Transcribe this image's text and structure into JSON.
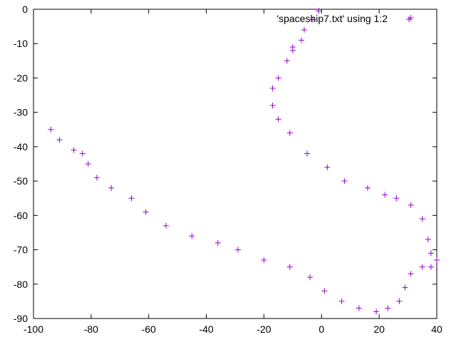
{
  "chart_data": {
    "type": "scatter",
    "title": "",
    "xlabel": "",
    "ylabel": "",
    "xlim": [
      -100,
      40
    ],
    "ylim": [
      -90,
      0
    ],
    "xticks": [
      -100,
      -80,
      -60,
      -40,
      -20,
      0,
      20,
      40
    ],
    "yticks": [
      0,
      -10,
      -20,
      -30,
      -40,
      -50,
      -60,
      -70,
      -80,
      -90
    ],
    "grid": false,
    "legend": "top-right",
    "marker_color": "#9400d3",
    "series": [
      {
        "name": "'spaceship7.txt' using 1:2",
        "points": [
          [
            -94,
            -35
          ],
          [
            -91,
            -38
          ],
          [
            -86,
            -41
          ],
          [
            -83,
            -42
          ],
          [
            -81,
            -45
          ],
          [
            -78,
            -49
          ],
          [
            -73,
            -52
          ],
          [
            -66,
            -55
          ],
          [
            -61,
            -59
          ],
          [
            -54,
            -63
          ],
          [
            -45,
            -66
          ],
          [
            -36,
            -68
          ],
          [
            -29,
            -70
          ],
          [
            -20,
            -73
          ],
          [
            -11,
            -75
          ],
          [
            -4,
            -78
          ],
          [
            1,
            -82
          ],
          [
            7,
            -85
          ],
          [
            13,
            -87
          ],
          [
            19,
            -88
          ],
          [
            23,
            -87
          ],
          [
            27,
            -85
          ],
          [
            29,
            -81
          ],
          [
            31,
            -77
          ],
          [
            35,
            -75
          ],
          [
            38,
            -75
          ],
          [
            40,
            -73
          ],
          [
            38,
            -71
          ],
          [
            37,
            -67
          ],
          [
            35,
            -61
          ],
          [
            31,
            -57
          ],
          [
            26,
            -55
          ],
          [
            22,
            -54
          ],
          [
            16,
            -52
          ],
          [
            8,
            -50
          ],
          [
            2,
            -46
          ],
          [
            -5,
            -42
          ],
          [
            -11,
            -36
          ],
          [
            -15,
            -32
          ],
          [
            -17,
            -28
          ],
          [
            -17,
            -23
          ],
          [
            -15,
            -20
          ],
          [
            -12,
            -15
          ],
          [
            -10,
            -12
          ],
          [
            -10,
            -11
          ],
          [
            -7,
            -9
          ],
          [
            -6,
            -6
          ],
          [
            -3,
            -3
          ],
          [
            -1,
            -0.5
          ],
          [
            31,
            -2.5
          ]
        ]
      }
    ]
  }
}
